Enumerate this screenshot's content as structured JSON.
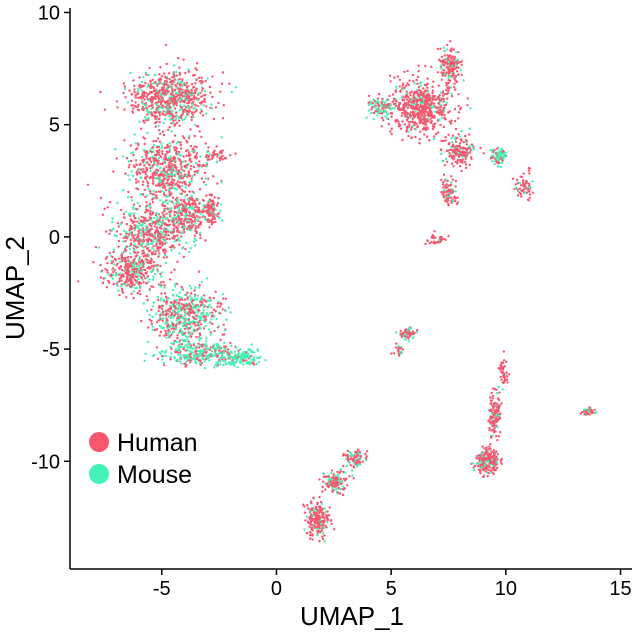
{
  "chart_data": {
    "type": "scatter",
    "title": "",
    "xlabel": "UMAP_1",
    "ylabel": "UMAP_2",
    "xlim": [
      -9,
      15.5
    ],
    "ylim": [
      -14.8,
      10.2
    ],
    "xticks": [
      -5,
      0,
      5,
      10,
      15
    ],
    "yticks": [
      -10,
      -5,
      0,
      5,
      10
    ],
    "grid": false,
    "legend_position": "bottom-left",
    "series": [
      {
        "name": "Human",
        "color": "#F8566E"
      },
      {
        "name": "Mouse",
        "color": "#45F2B5"
      }
    ],
    "clusters": [
      {
        "x": -4.6,
        "y": 6.2,
        "sx": 1.6,
        "sy": 1.1,
        "weight": 16,
        "mouse_frac": 0.25
      },
      {
        "x": -4.8,
        "y": 3.0,
        "sx": 1.5,
        "sy": 1.4,
        "weight": 14,
        "mouse_frac": 0.25
      },
      {
        "x": -5.4,
        "y": 0.2,
        "sx": 1.4,
        "sy": 1.2,
        "weight": 12,
        "mouse_frac": 0.35
      },
      {
        "x": -6.3,
        "y": -1.5,
        "sx": 1.1,
        "sy": 0.9,
        "weight": 8,
        "mouse_frac": 0.3
      },
      {
        "x": -3.8,
        "y": 1.0,
        "sx": 0.9,
        "sy": 0.9,
        "weight": 6,
        "mouse_frac": 0.3
      },
      {
        "x": -4.0,
        "y": -3.5,
        "sx": 1.4,
        "sy": 1.0,
        "weight": 12,
        "mouse_frac": 0.5
      },
      {
        "x": -3.3,
        "y": -5.2,
        "sx": 1.6,
        "sy": 0.5,
        "weight": 7,
        "mouse_frac": 0.6
      },
      {
        "x": -1.5,
        "y": -5.4,
        "sx": 0.7,
        "sy": 0.4,
        "weight": 3,
        "mouse_frac": 0.85
      },
      {
        "x": -2.8,
        "y": 1.2,
        "sx": 0.3,
        "sy": 0.5,
        "weight": 2,
        "mouse_frac": 0.2
      },
      {
        "x": -2.6,
        "y": 3.6,
        "sx": 0.6,
        "sy": 0.3,
        "weight": 1,
        "mouse_frac": 0.1
      },
      {
        "x": 6.3,
        "y": 5.8,
        "sx": 1.3,
        "sy": 1.0,
        "weight": 14,
        "mouse_frac": 0.15
      },
      {
        "x": 7.6,
        "y": 7.6,
        "sx": 0.4,
        "sy": 0.8,
        "weight": 4,
        "mouse_frac": 0.2
      },
      {
        "x": 4.6,
        "y": 5.8,
        "sx": 0.5,
        "sy": 0.4,
        "weight": 2,
        "mouse_frac": 0.6
      },
      {
        "x": 8.0,
        "y": 3.8,
        "sx": 0.6,
        "sy": 0.6,
        "weight": 4,
        "mouse_frac": 0.2
      },
      {
        "x": 9.7,
        "y": 3.6,
        "sx": 0.3,
        "sy": 0.3,
        "weight": 2,
        "mouse_frac": 0.7
      },
      {
        "x": 10.8,
        "y": 2.2,
        "sx": 0.4,
        "sy": 0.6,
        "weight": 1.5,
        "mouse_frac": 0.2
      },
      {
        "x": 7.5,
        "y": 2.0,
        "sx": 0.3,
        "sy": 0.6,
        "weight": 2,
        "mouse_frac": 0.15
      },
      {
        "x": 7.0,
        "y": -0.1,
        "sx": 0.4,
        "sy": 0.2,
        "weight": 0.8,
        "mouse_frac": 0.1
      },
      {
        "x": 5.7,
        "y": -4.3,
        "sx": 0.3,
        "sy": 0.25,
        "weight": 1.5,
        "mouse_frac": 0.45
      },
      {
        "x": 5.3,
        "y": -5.0,
        "sx": 0.2,
        "sy": 0.3,
        "weight": 0.5,
        "mouse_frac": 0.3
      },
      {
        "x": 9.2,
        "y": -10.0,
        "sx": 0.5,
        "sy": 0.5,
        "weight": 5,
        "mouse_frac": 0.2
      },
      {
        "x": 9.5,
        "y": -8.0,
        "sx": 0.25,
        "sy": 0.9,
        "weight": 3,
        "mouse_frac": 0.15
      },
      {
        "x": 9.9,
        "y": -6.0,
        "sx": 0.15,
        "sy": 0.6,
        "weight": 1,
        "mouse_frac": 0.1
      },
      {
        "x": 13.6,
        "y": -7.8,
        "sx": 0.25,
        "sy": 0.15,
        "weight": 1,
        "mouse_frac": 0.3
      },
      {
        "x": 1.8,
        "y": -12.6,
        "sx": 0.45,
        "sy": 0.7,
        "weight": 5,
        "mouse_frac": 0.15
      },
      {
        "x": 2.6,
        "y": -10.9,
        "sx": 0.5,
        "sy": 0.5,
        "weight": 3,
        "mouse_frac": 0.25
      },
      {
        "x": 3.4,
        "y": -9.9,
        "sx": 0.4,
        "sy": 0.3,
        "weight": 2,
        "mouse_frac": 0.25
      }
    ]
  }
}
